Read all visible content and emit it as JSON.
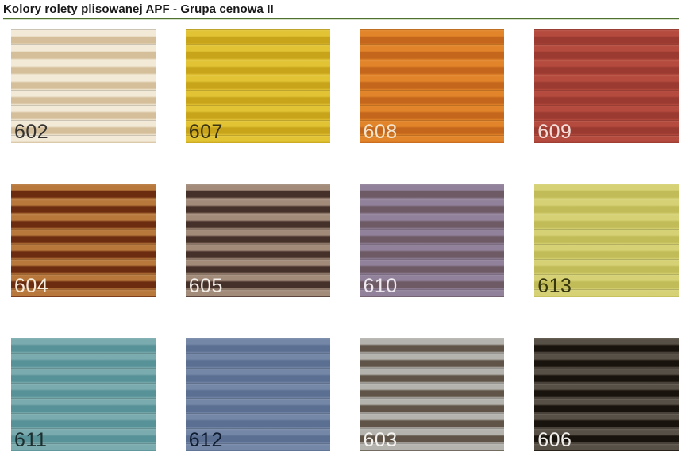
{
  "page": {
    "title": "Kolory rolety plisowanej APF - Grupa cenowa II"
  },
  "accent": {
    "underline_color": "#4e7030",
    "underline_light": "#d7e3c8",
    "background": "#ffffff"
  },
  "swatches": [
    {
      "code": "602",
      "pleat_light": "#f2e9d6",
      "pleat_dark": "#d5bf9b",
      "label_color": "#333231"
    },
    {
      "code": "607",
      "pleat_light": "#e2c334",
      "pleat_dark": "#c8a41b",
      "label_color": "#3a3313"
    },
    {
      "code": "608",
      "pleat_light": "#e28429",
      "pleat_dark": "#c4671c",
      "label_color": "#f2e4cc"
    },
    {
      "code": "609",
      "pleat_light": "#b54a3e",
      "pleat_dark": "#9a3a31",
      "label_color": "#f3ded9"
    },
    {
      "code": "604",
      "pleat_light": "#b8783c",
      "pleat_dark": "#6b2c0f",
      "label_color": "#f6ecdc"
    },
    {
      "code": "605",
      "pleat_light": "#a38b7a",
      "pleat_dark": "#46312a",
      "label_color": "#f2ede7"
    },
    {
      "code": "610",
      "pleat_light": "#91819a",
      "pleat_dark": "#6d5a65",
      "label_color": "#efebf1"
    },
    {
      "code": "613",
      "pleat_light": "#d5d174",
      "pleat_dark": "#c1bc57",
      "label_color": "#35350f"
    },
    {
      "code": "611",
      "pleat_light": "#7aabae",
      "pleat_dark": "#579298",
      "label_color": "#1c2f30"
    },
    {
      "code": "612",
      "pleat_light": "#7487a7",
      "pleat_dark": "#5b6f92",
      "label_color": "#0f1b30"
    },
    {
      "code": "603",
      "pleat_light": "#b5b3ae",
      "pleat_dark": "#5f5447",
      "label_color": "#f4f3f0"
    },
    {
      "code": "606",
      "pleat_light": "#575046",
      "pleat_dark": "#18130d",
      "label_color": "#f0eeeb"
    }
  ]
}
